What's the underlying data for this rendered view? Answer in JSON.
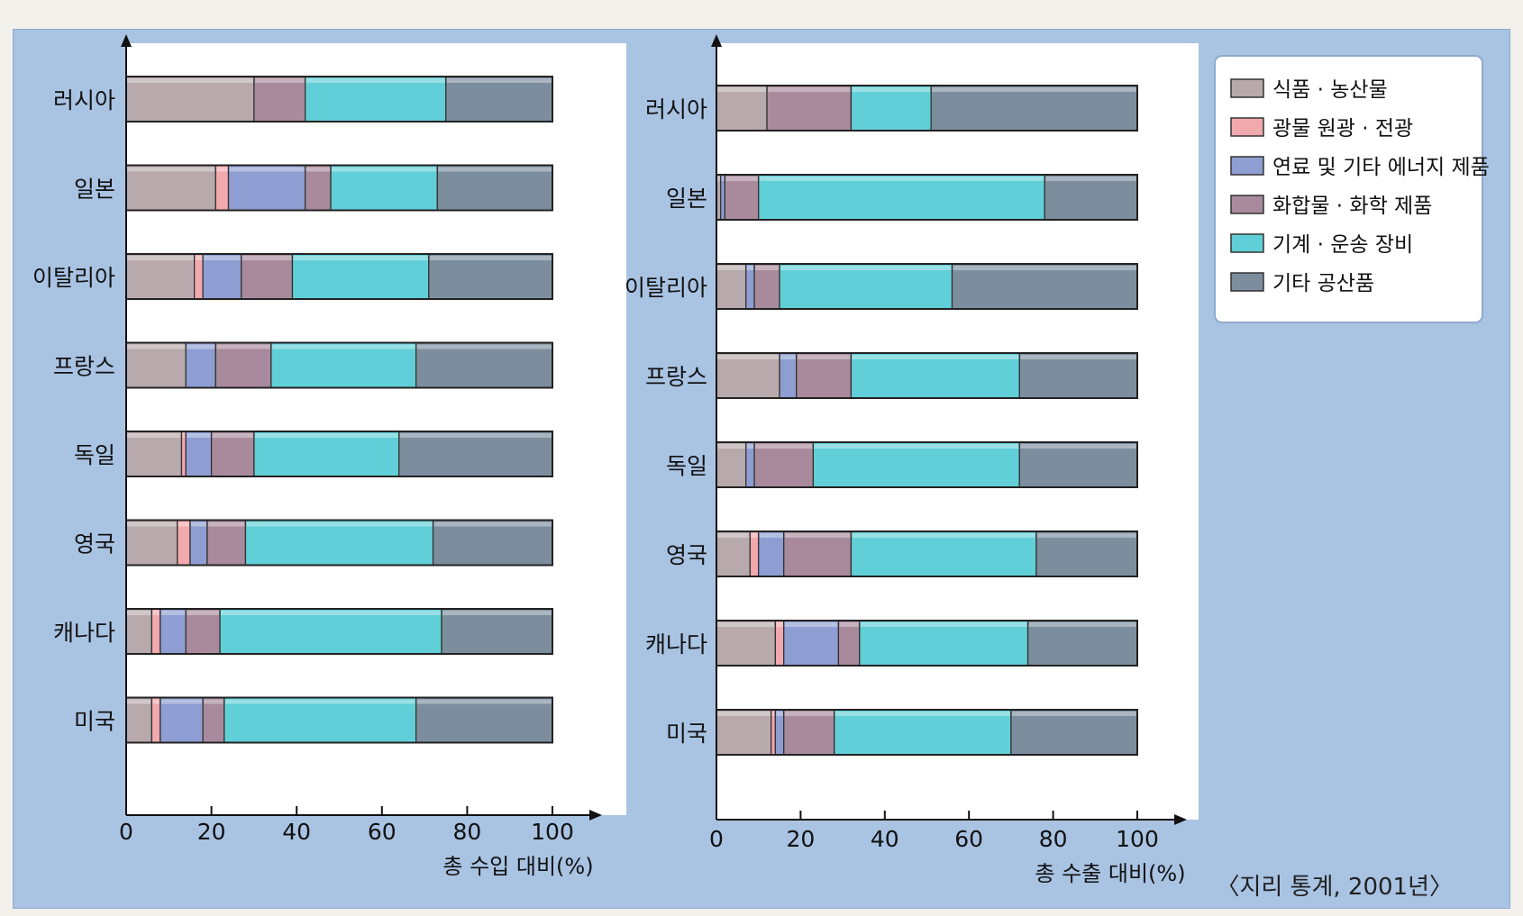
{
  "source": "〈지리 통계, 2001년〉",
  "legend": [
    {
      "label": "식품 · 농산물",
      "color": "#b7a9ac",
      "icon": "swatch-food"
    },
    {
      "label": "광물 원광 · 전광",
      "color": "#f1a9ad",
      "icon": "swatch-ore"
    },
    {
      "label": "연료 및 기타 에너지 제품",
      "color": "#8e9ed2",
      "icon": "swatch-fuel"
    },
    {
      "label": "화합물 · 화학 제품",
      "color": "#a98a9c",
      "icon": "swatch-chemical"
    },
    {
      "label": "기계 · 운송 장비",
      "color": "#61cfd7",
      "icon": "swatch-machinery"
    },
    {
      "label": "기타 공산품",
      "color": "#7c8e9e",
      "icon": "swatch-other"
    }
  ],
  "chart_data": [
    {
      "type": "bar",
      "orientation": "horizontal",
      "stacked": true,
      "xlabel": "총 수입 대비(%)",
      "xlim": [
        0,
        100
      ],
      "xticks": [
        0,
        20,
        40,
        60,
        80,
        100
      ],
      "categories": [
        "러시아",
        "일본",
        "이탈리아",
        "프랑스",
        "독일",
        "영국",
        "캐나다",
        "미국"
      ],
      "series": [
        {
          "name": "식품 · 농산물",
          "values": [
            30,
            21,
            16,
            14,
            13,
            12,
            6,
            6
          ]
        },
        {
          "name": "광물 원광 · 전광",
          "values": [
            0,
            3,
            2,
            0,
            1,
            3,
            2,
            2
          ]
        },
        {
          "name": "연료 및 기타 에너지 제품",
          "values": [
            0,
            18,
            9,
            7,
            6,
            4,
            6,
            10
          ]
        },
        {
          "name": "화합물 · 화학 제품",
          "values": [
            12,
            6,
            12,
            13,
            10,
            9,
            8,
            5
          ]
        },
        {
          "name": "기계 · 운송 장비",
          "values": [
            33,
            25,
            32,
            34,
            34,
            44,
            52,
            45
          ]
        },
        {
          "name": "기타 공산품",
          "values": [
            25,
            27,
            29,
            32,
            36,
            28,
            26,
            32
          ]
        }
      ]
    },
    {
      "type": "bar",
      "orientation": "horizontal",
      "stacked": true,
      "xlabel": "총 수출 대비(%)",
      "xlim": [
        0,
        100
      ],
      "xticks": [
        0,
        20,
        40,
        60,
        80,
        100
      ],
      "categories": [
        "러시아",
        "일본",
        "이탈리아",
        "프랑스",
        "독일",
        "영국",
        "캐나다",
        "미국"
      ],
      "series": [
        {
          "name": "식품 · 농산물",
          "values": [
            12,
            1,
            7,
            15,
            7,
            8,
            14,
            13
          ]
        },
        {
          "name": "광물 원광 · 전광",
          "values": [
            0,
            0,
            0,
            0,
            0,
            2,
            2,
            1
          ]
        },
        {
          "name": "연료 및 기타 에너지 제품",
          "values": [
            0,
            1,
            2,
            4,
            2,
            6,
            13,
            2
          ]
        },
        {
          "name": "화합물 · 화학 제품",
          "values": [
            20,
            8,
            6,
            13,
            14,
            16,
            5,
            12
          ]
        },
        {
          "name": "기계 · 운송 장비",
          "values": [
            19,
            68,
            41,
            40,
            49,
            44,
            40,
            42
          ]
        },
        {
          "name": "기타 공산품",
          "values": [
            49,
            22,
            44,
            28,
            28,
            24,
            26,
            30
          ]
        }
      ]
    }
  ]
}
